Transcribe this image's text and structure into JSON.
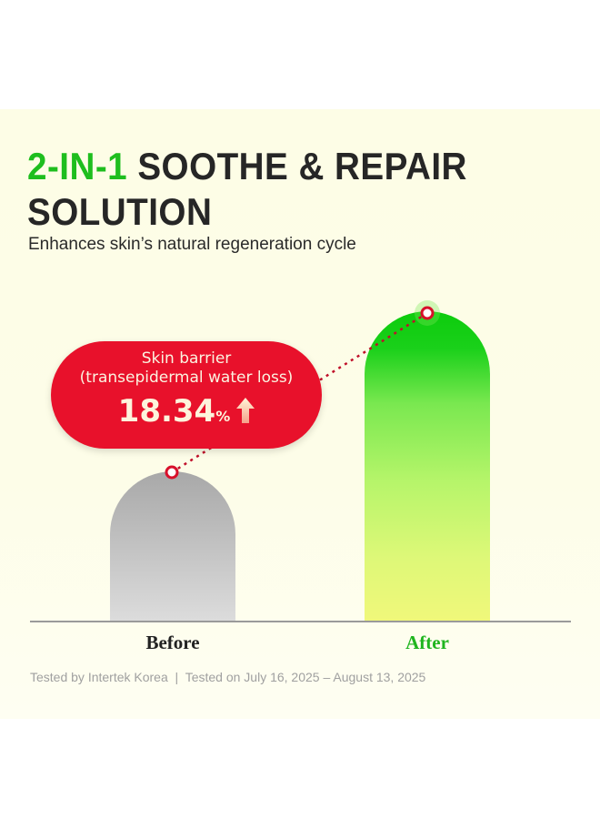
{
  "header": {
    "title_accent": "2-IN-1",
    "title_rest": " SOOTHE & REPAIR SOLUTION",
    "subtitle": "Enhances skin’s natural regeneration cycle"
  },
  "chart_data": {
    "type": "bar",
    "categories": [
      "Before",
      "After"
    ],
    "annotation": {
      "label_line1": "Skin barrier",
      "label_line2": "(transepidermal water loss)",
      "value": "18.34",
      "unit": "%",
      "direction": "up"
    },
    "grid": false,
    "colors": {
      "before": "#b4b4b4",
      "after": "#1ad01a",
      "callout": "#e8112b",
      "after_label": "#1fb51f"
    }
  },
  "footer": "Tested by Intertek Korea  |  Tested on July 16, 2025 – August 13, 2025"
}
